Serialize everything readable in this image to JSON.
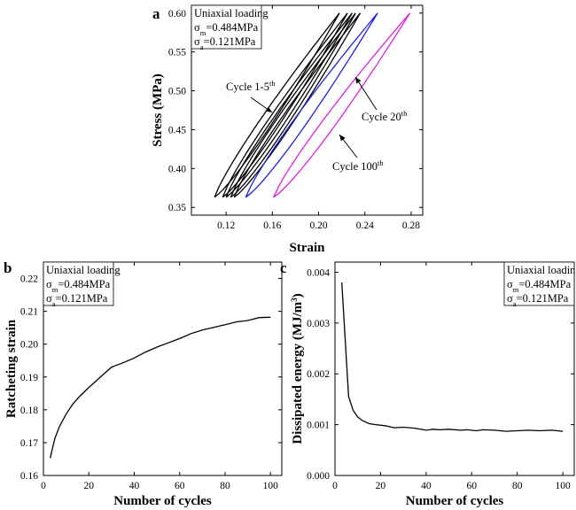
{
  "chart_data": [
    {
      "panel": "a",
      "type": "line",
      "xlabel": "Strain",
      "ylabel": "Stress (MPa)",
      "xlim": [
        0.09,
        0.29
      ],
      "ylim": [
        0.34,
        0.61
      ],
      "xticks": [
        0.12,
        0.16,
        0.2,
        0.24,
        0.28
      ],
      "xtick_labels": [
        "0.12",
        "0.16",
        "0.20",
        "0.24",
        "0.28"
      ],
      "yticks": [
        0.35,
        0.4,
        0.45,
        0.5,
        0.55,
        0.6
      ],
      "ytick_labels": [
        "0.35",
        "0.40",
        "0.45",
        "0.50",
        "0.55",
        "0.60"
      ],
      "info": [
        "Uniaxial loading",
        "σm=0.484MPa",
        "σa=0.121MPa"
      ],
      "info_lines": [
        {
          "base": "Uniaxial loading",
          "sub": "",
          "rest": ""
        },
        {
          "base": "σ",
          "sub": "m",
          "rest": "=0.484MPa"
        },
        {
          "base": "σ",
          "sub": "a",
          "rest": "=0.121MPa"
        }
      ],
      "annotations": [
        {
          "text": "Cycle 1-5th",
          "base": "Cycle 1-5",
          "sup": "th"
        },
        {
          "text": "Cycle 20th",
          "base": "Cycle 20",
          "sup": "th"
        },
        {
          "text": "Cycle 100th",
          "base": "Cycle 100",
          "sup": "th"
        }
      ],
      "series": [
        {
          "name": "Cycle 1",
          "color": "#000000",
          "min_strain": 0.11,
          "max_strain": 0.218
        },
        {
          "name": "Cycle 2",
          "color": "#000000",
          "min_strain": 0.117,
          "max_strain": 0.225
        },
        {
          "name": "Cycle 3",
          "color": "#000000",
          "min_strain": 0.12,
          "max_strain": 0.229
        },
        {
          "name": "Cycle 4",
          "color": "#000000",
          "min_strain": 0.124,
          "max_strain": 0.232
        },
        {
          "name": "Cycle 5",
          "color": "#000000",
          "min_strain": 0.127,
          "max_strain": 0.236
        },
        {
          "name": "Cycle 20",
          "color": "#1f1fe0",
          "min_strain": 0.137,
          "max_strain": 0.251
        },
        {
          "name": "Cycle 100",
          "color": "#e020e0",
          "min_strain": 0.161,
          "max_strain": 0.279
        }
      ],
      "stress_min": 0.363,
      "stress_max": 0.6
    },
    {
      "panel": "b",
      "type": "line",
      "xlabel": "Number of cycles",
      "ylabel": "Ratcheting strain",
      "xlim": [
        0,
        105
      ],
      "ylim": [
        0.16,
        0.225
      ],
      "xticks": [
        0,
        20,
        40,
        60,
        80,
        100
      ],
      "xtick_labels": [
        "0",
        "20",
        "40",
        "60",
        "80",
        "100"
      ],
      "yticks": [
        0.16,
        0.17,
        0.18,
        0.19,
        0.2,
        0.21,
        0.22
      ],
      "ytick_labels": [
        "0.16",
        "0.17",
        "0.18",
        "0.19",
        "0.20",
        "0.21",
        "0.22"
      ],
      "info": [
        "Uniaxial loading",
        "σm=0.484MPa",
        "σa=0.121MPa"
      ],
      "info_lines": [
        {
          "base": "Uniaxial loading",
          "sub": "",
          "rest": ""
        },
        {
          "base": "σ",
          "sub": "m",
          "rest": "=0.484MPa"
        },
        {
          "base": "σ",
          "sub": "a",
          "rest": "=0.121MPa"
        }
      ],
      "series": [
        {
          "name": "Ratcheting strain",
          "color": "#000000",
          "x": [
            3,
            5,
            7,
            10,
            13,
            16,
            20,
            25,
            30,
            35,
            40,
            45,
            50,
            55,
            60,
            65,
            70,
            75,
            80,
            85,
            90,
            95,
            100
          ],
          "y": [
            0.1653,
            0.1712,
            0.1748,
            0.1787,
            0.1818,
            0.1841,
            0.1868,
            0.1899,
            0.193,
            0.1943,
            0.1958,
            0.1976,
            0.1991,
            0.2004,
            0.2017,
            0.2032,
            0.2043,
            0.2051,
            0.2059,
            0.2068,
            0.2072,
            0.2081,
            0.2082
          ]
        }
      ]
    },
    {
      "panel": "c",
      "type": "line",
      "xlabel": "Number of cycles",
      "ylabel": "Dissipated energy (MJ/m3)",
      "ylabel_parts": {
        "base": "Dissipated energy (MJ/m",
        "sup": "3",
        "end": ")"
      },
      "xlim": [
        0,
        105
      ],
      "ylim": [
        0,
        0.0042
      ],
      "xticks": [
        0,
        20,
        40,
        60,
        80,
        100
      ],
      "xtick_labels": [
        "0",
        "20",
        "40",
        "60",
        "80",
        "100"
      ],
      "yticks": [
        0,
        0.001,
        0.002,
        0.003,
        0.004
      ],
      "ytick_labels": [
        "0.000",
        "0.001",
        "0.002",
        "0.003",
        "0.004"
      ],
      "info": [
        "Uniaxial loading",
        "σm=0.484MPa",
        "σa=0.121MPa"
      ],
      "info_lines": [
        {
          "base": "Uniaxial loading",
          "sub": "",
          "rest": ""
        },
        {
          "base": "σ",
          "sub": "m",
          "rest": "=0.484MPa"
        },
        {
          "base": "σ",
          "sub": "a",
          "rest": "=0.121MPa"
        }
      ],
      "series": [
        {
          "name": "Dissipated energy",
          "color": "#000000",
          "x": [
            3,
            6,
            8,
            10,
            12,
            15,
            18,
            22,
            26,
            30,
            35,
            40,
            43,
            46,
            50,
            55,
            58,
            62,
            65,
            70,
            75,
            80,
            85,
            90,
            95,
            100
          ],
          "y": [
            0.0038,
            0.00155,
            0.00128,
            0.00115,
            0.00108,
            0.00102,
            0.001,
            0.00098,
            0.00094,
            0.00095,
            0.00093,
            0.00089,
            0.00091,
            0.0009,
            0.00091,
            0.00089,
            0.0009,
            0.00088,
            0.0009,
            0.00089,
            0.00087,
            0.00088,
            0.00089,
            0.00088,
            0.00089,
            0.00087
          ]
        }
      ]
    }
  ]
}
